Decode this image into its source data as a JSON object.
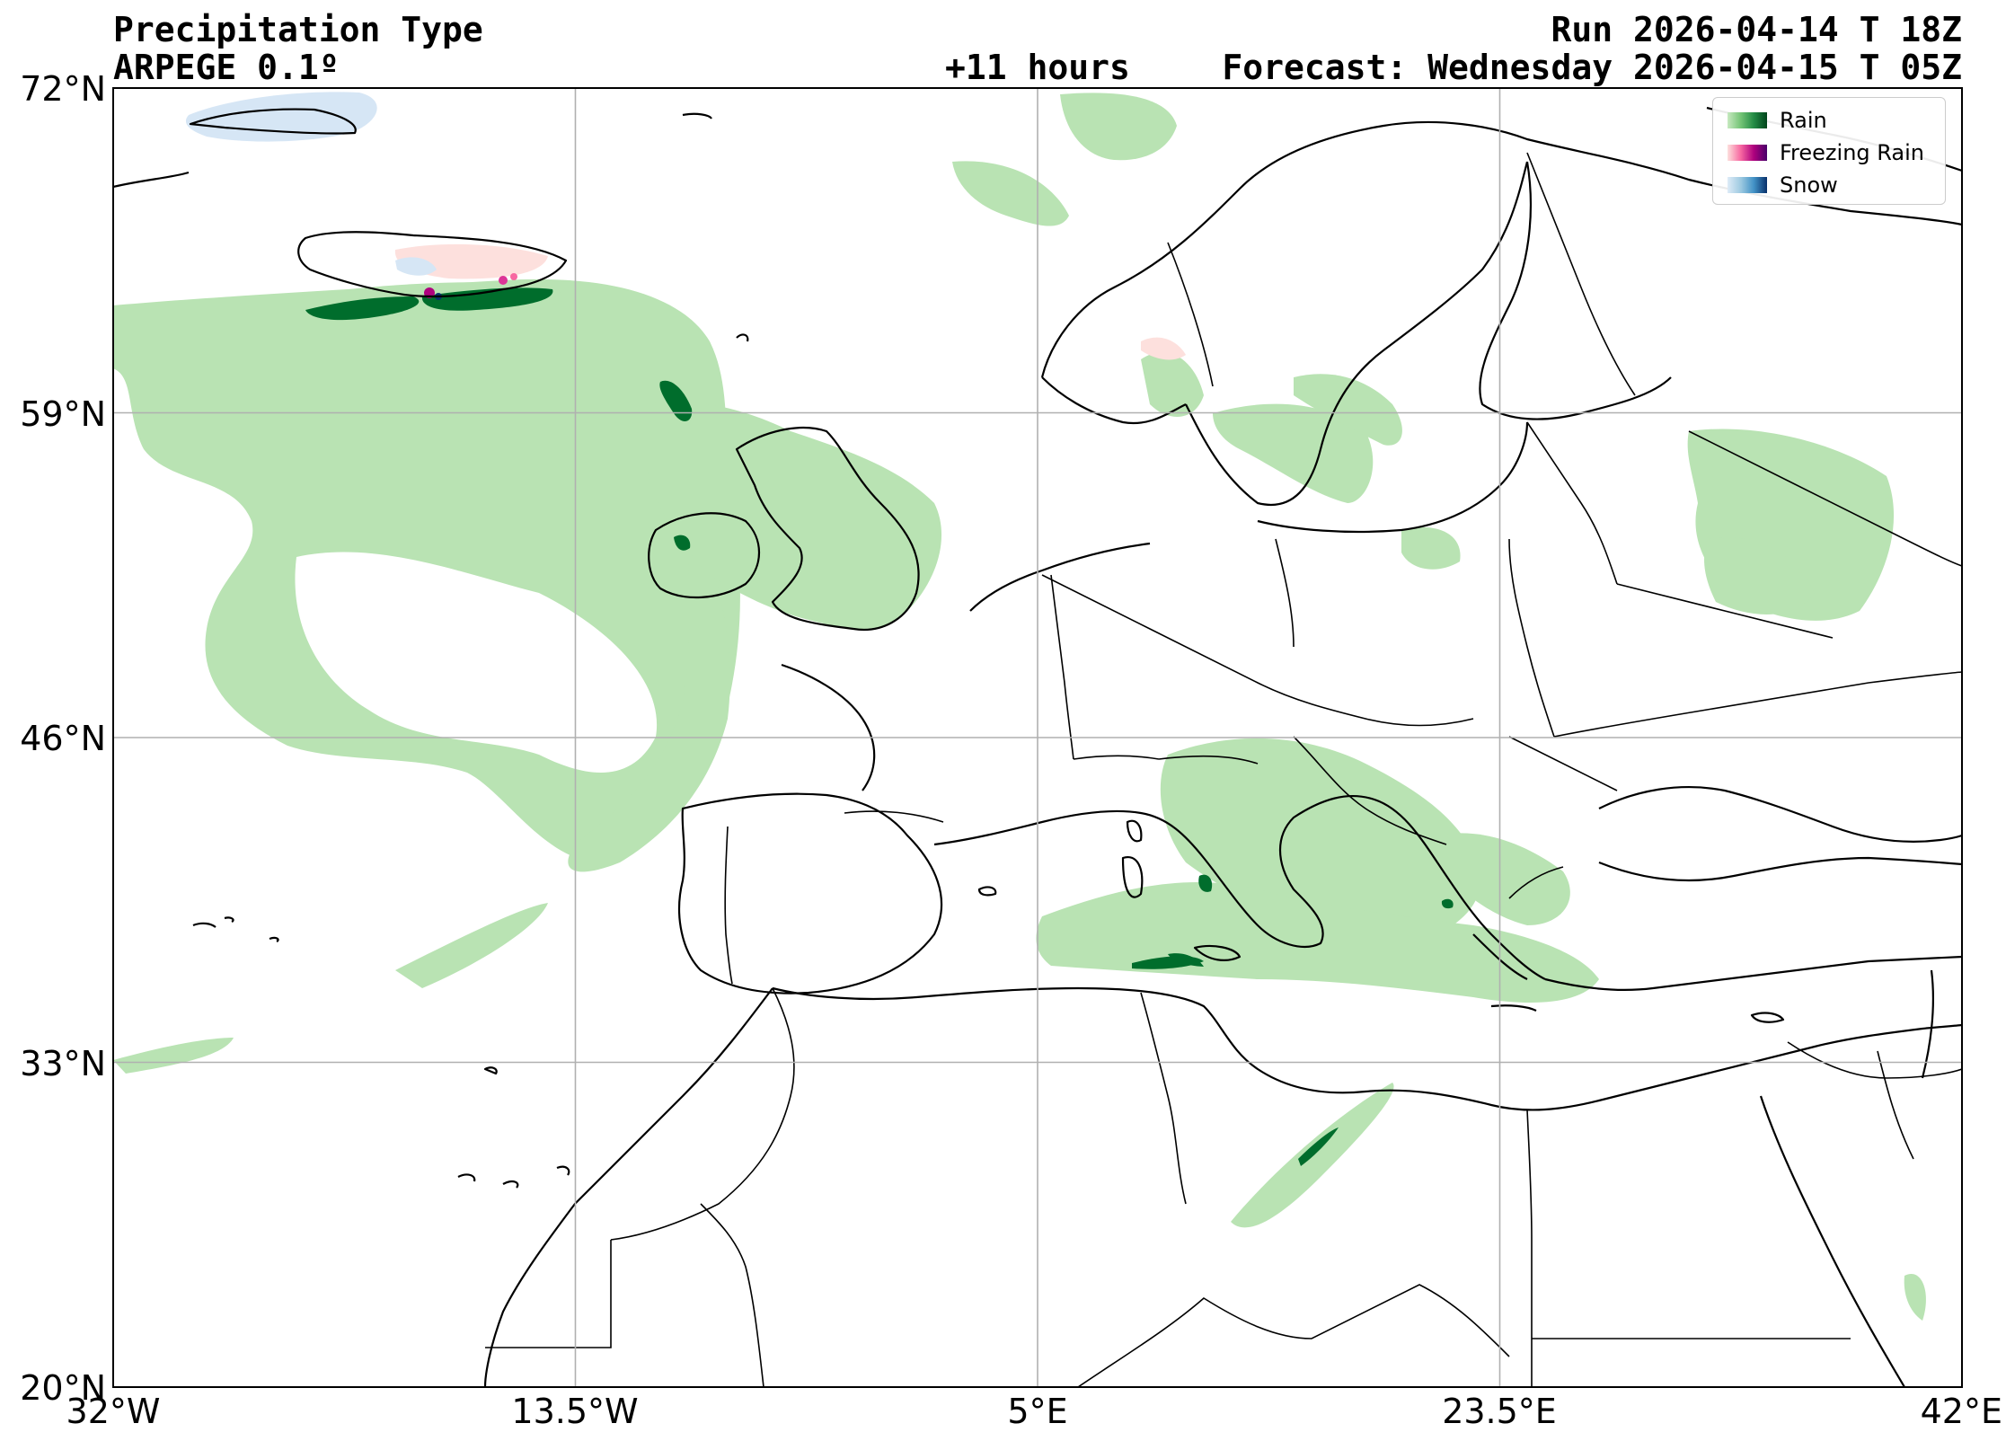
{
  "header": {
    "title": "Precipitation Type",
    "model": "ARPEGE 0.1º",
    "run": "Run 2026-04-14 T 18Z",
    "lead": "+11 hours",
    "forecast": "Forecast: Wednesday 2026-04-15 T 05Z"
  },
  "axes": {
    "lon_ticks": [
      {
        "value": -32,
        "label": "32°W"
      },
      {
        "value": -13.5,
        "label": "13.5°W"
      },
      {
        "value": 5,
        "label": "5°E"
      },
      {
        "value": 23.5,
        "label": "23.5°E"
      },
      {
        "value": 42,
        "label": "42°E"
      }
    ],
    "lat_ticks": [
      {
        "value": 72,
        "label": "72°N"
      },
      {
        "value": 59,
        "label": "59°N"
      },
      {
        "value": 46,
        "label": "46°N"
      },
      {
        "value": 33,
        "label": "33°N"
      },
      {
        "value": 20,
        "label": "20°N"
      }
    ],
    "lon_range": [
      -32,
      42
    ],
    "lat_range": [
      20,
      72
    ],
    "grid": true
  },
  "legend": {
    "placement": "top-right",
    "entries": [
      {
        "label": "Rain",
        "colors": [
          "#c7e9c0",
          "#74c476",
          "#238b45",
          "#00441b"
        ]
      },
      {
        "label": "Freezing Rain",
        "colors": [
          "#fde0dd",
          "#f768a1",
          "#ae017e",
          "#49006a"
        ]
      },
      {
        "label": "Snow",
        "colors": [
          "#deebf7",
          "#9ecae1",
          "#4292c6",
          "#08306b"
        ]
      }
    ]
  },
  "colors": {
    "rain_light": "#b9e3b3",
    "rain_heavy": "#006d2c",
    "freezing_rain_light": "#fde0dd",
    "freezing_rain_heavy": "#ae017e",
    "snow_light": "#d6e6f5",
    "coastline": "#000000",
    "gridline": "#b0b0b0"
  }
}
